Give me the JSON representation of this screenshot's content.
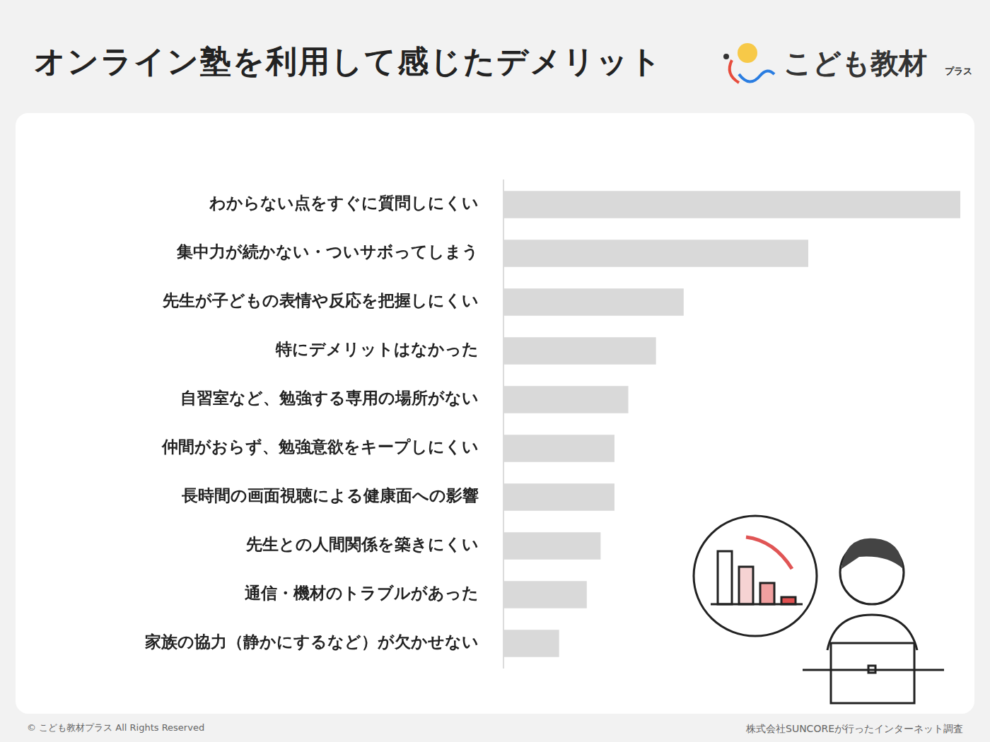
{
  "chart_data": {
    "type": "bar",
    "orientation": "horizontal",
    "title": "オンライン塾を利用して感じたデメリット",
    "categories": [
      "わからない点をすぐに質問しにくい",
      "集中力が続かない・ついサボってしまう",
      "先生が子どもの表情や反応を把握しにくい",
      "特にデメリットはなかった",
      "自習室など、勉強する専用の場所がない",
      "仲間がおらず、勉強意欲をキープしにくい",
      "長時間の画面視聴による健康面への影響",
      "先生との人間関係を築きにくい",
      "通信・機材のトラブルがあった",
      "家族の協力（静かにするなど）が欠かせない"
    ],
    "values": [
      33,
      22,
      13,
      11,
      9,
      8,
      8,
      7,
      6,
      4
    ],
    "color": "#d9d9d9",
    "xlim": [
      0,
      33
    ],
    "grid": false,
    "tick_labels": "y",
    "logo": "こども教材",
    "logo_sub": "プラス",
    "copyright": "© こども教材プラス All Rights Reserved",
    "source": "株式会社SUNCOREが行ったインターネット調査"
  }
}
